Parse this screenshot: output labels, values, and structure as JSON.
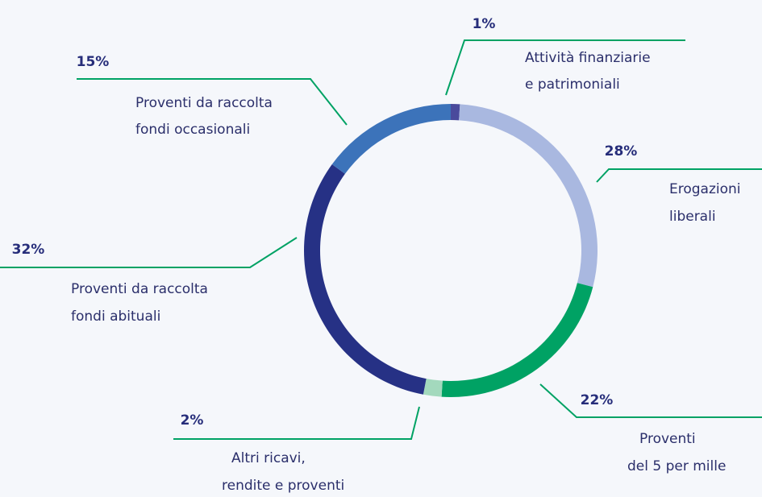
{
  "chart_data": {
    "type": "donut",
    "categories": [
      [
        "Attività finanziarie",
        "e patrimoniali"
      ],
      [
        "Erogazioni",
        "liberali"
      ],
      [
        "Proventi",
        "del 5 per mille"
      ],
      [
        "Altri ricavi,",
        "rendite e proventi"
      ],
      [
        "Proventi da raccolta",
        "fondi abituali"
      ],
      [
        "Proventi da raccolta",
        "fondi occasionali"
      ]
    ],
    "values": [
      1,
      28,
      22,
      2,
      32,
      15
    ],
    "value_labels": [
      "1%",
      "28%",
      "22%",
      "2%",
      "32%",
      "15%"
    ],
    "colors": [
      "#4a4a9c",
      "#a9b8e0",
      "#00a264",
      "#a3d9bd",
      "#263185",
      "#3c73ba"
    ]
  }
}
